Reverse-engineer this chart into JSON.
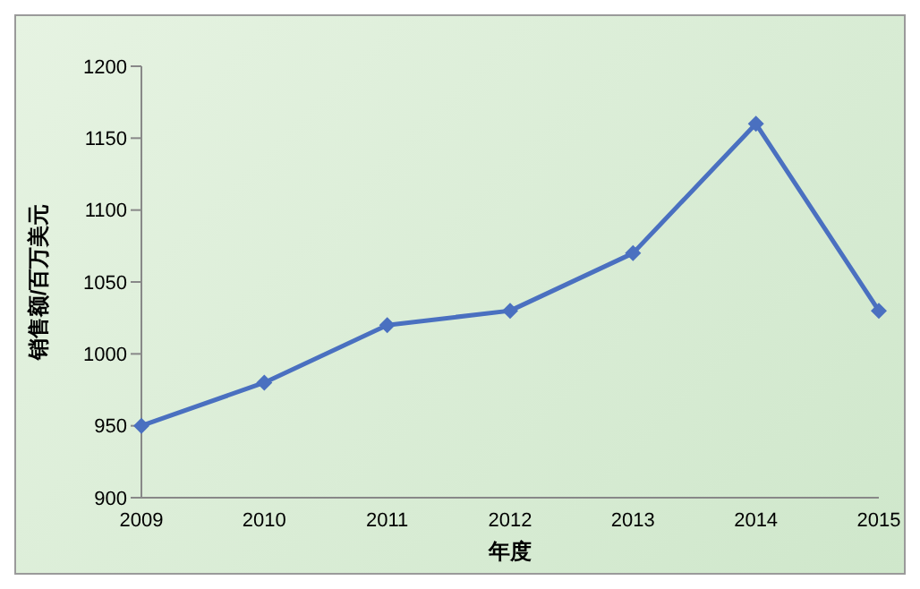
{
  "chart_data": {
    "type": "line",
    "xlabel": "年度",
    "ylabel": "销售额/百万美元",
    "categories": [
      "2009",
      "2010",
      "2011",
      "2012",
      "2013",
      "2014",
      "2015"
    ],
    "series": [
      {
        "color": "#4a70c0",
        "values": [
          950,
          980,
          1020,
          1030,
          1070,
          1160,
          1030
        ]
      }
    ],
    "ylim": [
      900,
      1200
    ],
    "yticks": [
      900,
      950,
      1000,
      1050,
      1100,
      1150,
      1200
    ],
    "grid": false,
    "legend": false,
    "marker": "diamond",
    "line_style": "solid"
  }
}
